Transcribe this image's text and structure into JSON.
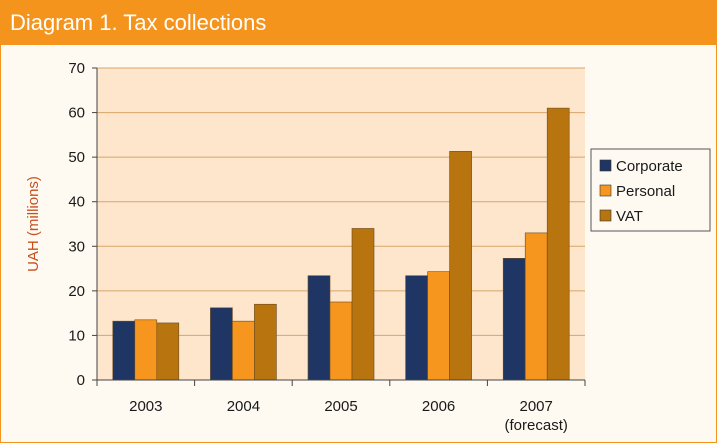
{
  "header": {
    "title": "Diagram 1. Tax collections"
  },
  "chart_data": {
    "type": "bar",
    "title": "Diagram 1. Tax collections",
    "xlabel": "",
    "ylabel": "UAH (millions)",
    "categories": [
      "2003",
      "2004",
      "2005",
      "2006",
      "2007\n(forecast)"
    ],
    "ylim": [
      0,
      70
    ],
    "yticks": [
      0,
      10,
      20,
      30,
      40,
      50,
      60,
      70
    ],
    "grid": true,
    "legend_position": "right",
    "series": [
      {
        "name": "Corporate",
        "color": "#1f3564",
        "values": [
          13.2,
          16.2,
          23.4,
          23.4,
          27.3
        ]
      },
      {
        "name": "Personal",
        "color": "#f6961e",
        "values": [
          13.5,
          13.2,
          17.5,
          24.3,
          33.0
        ]
      },
      {
        "name": "VAT",
        "color": "#b8750f",
        "values": [
          12.8,
          17.0,
          34.0,
          51.3,
          61.0
        ]
      }
    ]
  }
}
